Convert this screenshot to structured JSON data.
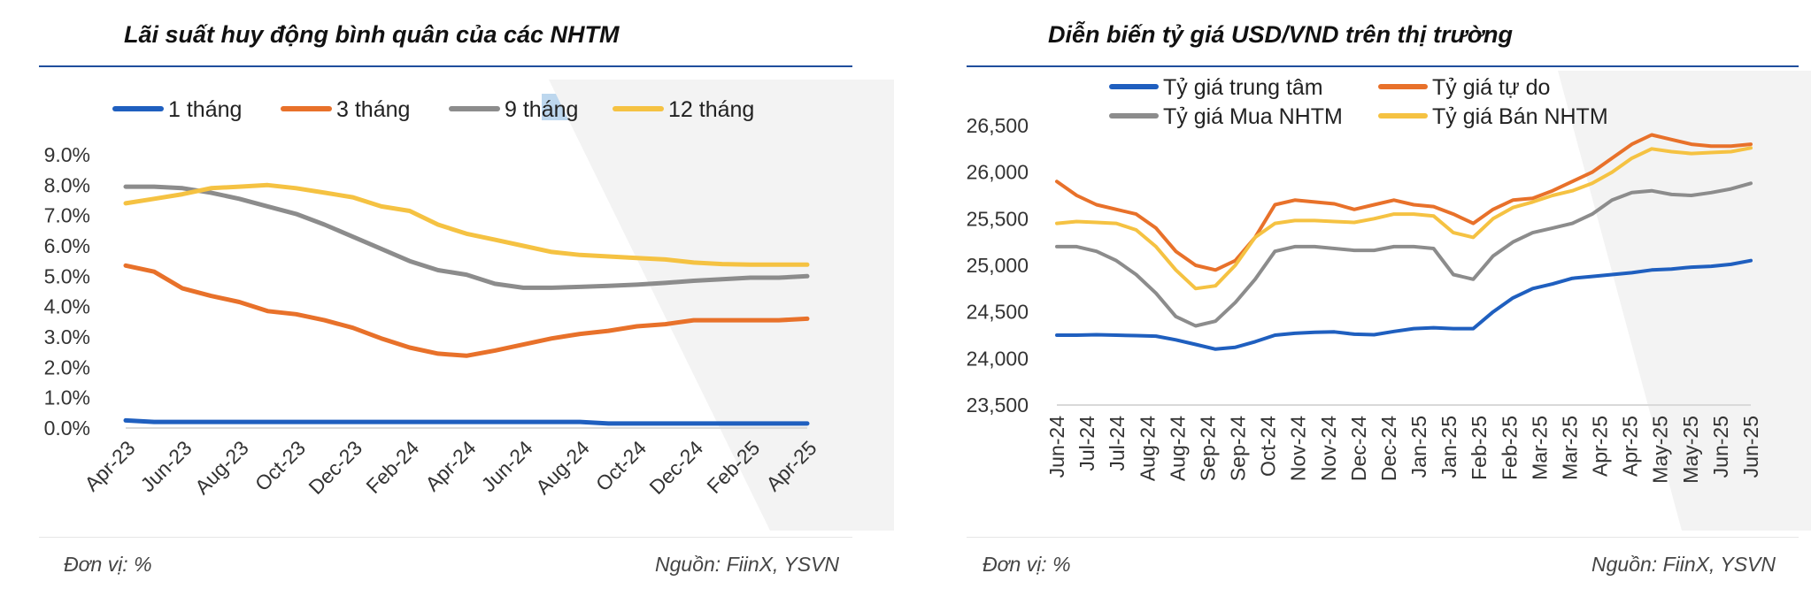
{
  "left": {
    "title": "Lãi suất huy động bình quân của các NHTM",
    "unit_note": "Đơn vị: %",
    "source_note": "Nguồn: FiinX, YSVN"
  },
  "right": {
    "title": "Diễn biến tỷ giá USD/VND trên thị trường",
    "unit_note": "Đơn vị: %",
    "source_note": "Nguồn: FiinX, YSVN"
  },
  "chart_data": [
    {
      "type": "line",
      "title": "Lãi suất huy động bình quân của các NHTM",
      "xlabel": "",
      "ylabel": "",
      "ylim": [
        0,
        9
      ],
      "yticks": [
        "0.0%",
        "1.0%",
        "2.0%",
        "3.0%",
        "4.0%",
        "5.0%",
        "6.0%",
        "7.0%",
        "8.0%",
        "9.0%"
      ],
      "x": [
        "Apr-23",
        "May-23",
        "Jun-23",
        "Jul-23",
        "Aug-23",
        "Sep-23",
        "Oct-23",
        "Nov-23",
        "Dec-23",
        "Jan-24",
        "Feb-24",
        "Mar-24",
        "Apr-24",
        "May-24",
        "Jun-24",
        "Jul-24",
        "Aug-24",
        "Sep-24",
        "Oct-24",
        "Nov-24",
        "Dec-24",
        "Jan-25",
        "Feb-25",
        "Mar-25",
        "Apr-25"
      ],
      "xticks": [
        "Apr-23",
        "Jun-23",
        "Aug-23",
        "Oct-23",
        "Dec-23",
        "Feb-24",
        "Apr-24",
        "Jun-24",
        "Aug-24",
        "Oct-24",
        "Dec-24",
        "Feb-25",
        "Apr-25"
      ],
      "legend": "top",
      "grid": false,
      "series": [
        {
          "name": "1 tháng",
          "color": "#1f5fbf",
          "values": [
            0.25,
            0.2,
            0.2,
            0.2,
            0.2,
            0.2,
            0.2,
            0.2,
            0.2,
            0.2,
            0.2,
            0.2,
            0.2,
            0.2,
            0.2,
            0.2,
            0.2,
            0.15,
            0.15,
            0.15,
            0.15,
            0.15,
            0.15,
            0.15,
            0.15
          ]
        },
        {
          "name": "3 tháng",
          "color": "#e8712a",
          "values": [
            5.35,
            5.15,
            4.6,
            4.35,
            4.15,
            3.85,
            3.75,
            3.55,
            3.3,
            2.95,
            2.65,
            2.45,
            2.38,
            2.55,
            2.75,
            2.95,
            3.1,
            3.2,
            3.35,
            3.42,
            3.55,
            3.55,
            3.55,
            3.55,
            3.6
          ]
        },
        {
          "name": "9 tháng",
          "color": "#8c8c8c",
          "values": [
            7.95,
            7.95,
            7.9,
            7.75,
            7.55,
            7.3,
            7.05,
            6.7,
            6.3,
            5.9,
            5.5,
            5.2,
            5.05,
            4.75,
            4.62,
            4.62,
            4.65,
            4.68,
            4.72,
            4.78,
            4.85,
            4.9,
            4.95,
            4.95,
            5.0
          ]
        },
        {
          "name": "12 tháng",
          "color": "#f5c242",
          "values": [
            7.4,
            7.55,
            7.7,
            7.9,
            7.95,
            8.0,
            7.9,
            7.75,
            7.6,
            7.3,
            7.15,
            6.7,
            6.4,
            6.2,
            6.0,
            5.8,
            5.7,
            5.65,
            5.6,
            5.55,
            5.45,
            5.4,
            5.38,
            5.38,
            5.38
          ]
        }
      ]
    },
    {
      "type": "line",
      "title": "Diễn biến tỷ giá USD/VND trên thị trường",
      "xlabel": "",
      "ylabel": "",
      "ylim": [
        23500,
        26500
      ],
      "yticks": [
        "23,500",
        "24,000",
        "24,500",
        "25,000",
        "25,500",
        "26,000",
        "26,500"
      ],
      "xticks": [
        "Jun-24",
        "Jul-24",
        "Jul-24",
        "Aug-24",
        "Aug-24",
        "Sep-24",
        "Sep-24",
        "Oct-24",
        "Nov-24",
        "Nov-24",
        "Dec-24",
        "Dec-24",
        "Jan-25",
        "Jan-25",
        "Feb-25",
        "Feb-25",
        "Mar-25",
        "Mar-25",
        "Apr-25",
        "Apr-25",
        "May-25",
        "May-25",
        "Jun-25",
        "Jun-25"
      ],
      "legend": "top",
      "grid": false,
      "series": [
        {
          "name": "Tỷ giá trung tâm",
          "color": "#1f5fbf",
          "values": [
            24250,
            24250,
            24255,
            24250,
            24245,
            24240,
            24200,
            24150,
            24100,
            24120,
            24180,
            24250,
            24270,
            24280,
            24285,
            24260,
            24255,
            24290,
            24320,
            24330,
            24320,
            24320,
            24500,
            24650,
            24750,
            24800,
            24860,
            24880,
            24900,
            24920,
            24950,
            24960,
            24980,
            24990,
            25010,
            25050
          ]
        },
        {
          "name": "Tỷ giá tự do",
          "color": "#e8712a",
          "values": [
            25900,
            25750,
            25650,
            25600,
            25550,
            25400,
            25150,
            25000,
            24950,
            25050,
            25300,
            25650,
            25700,
            25680,
            25660,
            25600,
            25650,
            25700,
            25650,
            25630,
            25550,
            25450,
            25600,
            25700,
            25720,
            25800,
            25900,
            26000,
            26150,
            26300,
            26400,
            26350,
            26300,
            26280,
            26280,
            26300
          ]
        },
        {
          "name": "Tỷ giá Mua NHTM",
          "color": "#8c8c8c",
          "values": [
            25200,
            25200,
            25150,
            25050,
            24900,
            24700,
            24450,
            24350,
            24400,
            24600,
            24850,
            25150,
            25200,
            25200,
            25180,
            25160,
            25160,
            25200,
            25200,
            25180,
            24900,
            24850,
            25100,
            25250,
            25350,
            25400,
            25450,
            25550,
            25700,
            25780,
            25800,
            25760,
            25750,
            25780,
            25820,
            25880
          ]
        },
        {
          "name": "Tỷ giá Bán NHTM",
          "color": "#f5c242",
          "values": [
            25450,
            25470,
            25460,
            25450,
            25380,
            25200,
            24950,
            24750,
            24780,
            25000,
            25300,
            25450,
            25480,
            25480,
            25470,
            25460,
            25500,
            25550,
            25550,
            25530,
            25350,
            25300,
            25500,
            25620,
            25680,
            25750,
            25800,
            25880,
            26000,
            26150,
            26250,
            26220,
            26200,
            26210,
            26220,
            26260
          ]
        }
      ]
    }
  ]
}
